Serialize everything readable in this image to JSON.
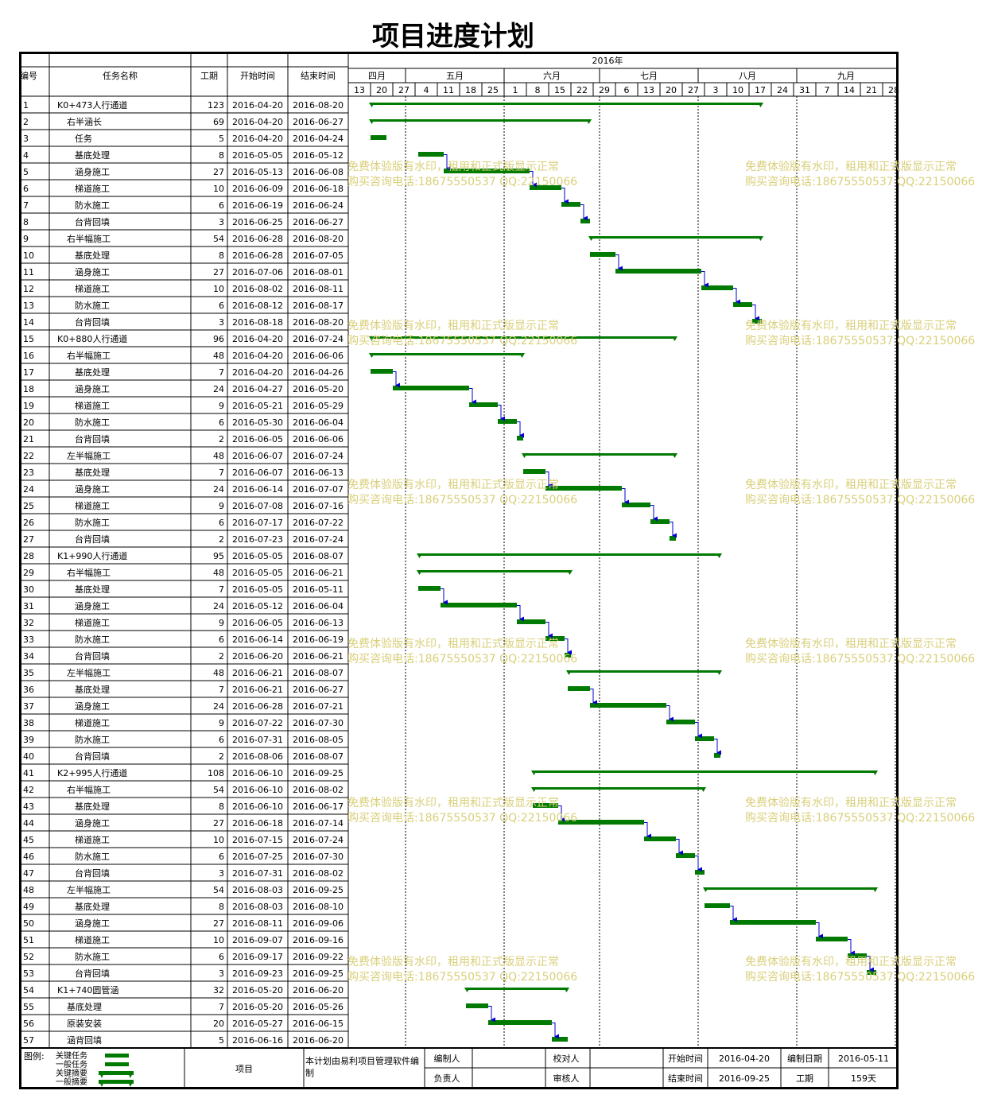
{
  "title": "项目进度计划",
  "columns": [
    "编号",
    "任务名称",
    "工期",
    "开始时间",
    "结束时间"
  ],
  "timeline": {
    "year": "2016年",
    "months": [
      "四月",
      "五月",
      "六月",
      "七月",
      "八月",
      "九月"
    ],
    "weeks": [
      "13",
      "20",
      "27",
      "4",
      "11",
      "18",
      "25",
      "1",
      "8",
      "15",
      "22",
      "29",
      "6",
      "13",
      "20",
      "27",
      "3",
      "10",
      "17",
      "24",
      "31",
      "7",
      "14",
      "21",
      "28"
    ]
  },
  "tasks": [
    {
      "id": "1",
      "name": "K0+473人行通道",
      "level": 0,
      "dur": "123",
      "start": "2016-04-20",
      "end": "2016-08-20"
    },
    {
      "id": "2",
      "name": "右半涵长",
      "level": 1,
      "dur": "69",
      "start": "2016-04-20",
      "end": "2016-06-27"
    },
    {
      "id": "3",
      "name": "任务",
      "level": 2,
      "dur": "5",
      "start": "2016-04-20",
      "end": "2016-04-24"
    },
    {
      "id": "4",
      "name": "基底处理",
      "level": 2,
      "dur": "8",
      "start": "2016-05-05",
      "end": "2016-05-12"
    },
    {
      "id": "5",
      "name": "涵身施工",
      "level": 2,
      "dur": "27",
      "start": "2016-05-13",
      "end": "2016-06-08"
    },
    {
      "id": "6",
      "name": "梯道施工",
      "level": 2,
      "dur": "10",
      "start": "2016-06-09",
      "end": "2016-06-18"
    },
    {
      "id": "7",
      "name": "防水施工",
      "level": 2,
      "dur": "6",
      "start": "2016-06-19",
      "end": "2016-06-24"
    },
    {
      "id": "8",
      "name": "台背回填",
      "level": 2,
      "dur": "3",
      "start": "2016-06-25",
      "end": "2016-06-27"
    },
    {
      "id": "9",
      "name": "右半幅施工",
      "level": 1,
      "dur": "54",
      "start": "2016-06-28",
      "end": "2016-08-20"
    },
    {
      "id": "10",
      "name": "基底处理",
      "level": 2,
      "dur": "8",
      "start": "2016-06-28",
      "end": "2016-07-05"
    },
    {
      "id": "11",
      "name": "涵身施工",
      "level": 2,
      "dur": "27",
      "start": "2016-07-06",
      "end": "2016-08-01"
    },
    {
      "id": "12",
      "name": "梯道施工",
      "level": 2,
      "dur": "10",
      "start": "2016-08-02",
      "end": "2016-08-11"
    },
    {
      "id": "13",
      "name": "防水施工",
      "level": 2,
      "dur": "6",
      "start": "2016-08-12",
      "end": "2016-08-17"
    },
    {
      "id": "14",
      "name": "台背回填",
      "level": 2,
      "dur": "3",
      "start": "2016-08-18",
      "end": "2016-08-20"
    },
    {
      "id": "15",
      "name": "K0+880人行通道",
      "level": 0,
      "dur": "96",
      "start": "2016-04-20",
      "end": "2016-07-24"
    },
    {
      "id": "16",
      "name": "右半幅施工",
      "level": 1,
      "dur": "48",
      "start": "2016-04-20",
      "end": "2016-06-06"
    },
    {
      "id": "17",
      "name": "基底处理",
      "level": 2,
      "dur": "7",
      "start": "2016-04-20",
      "end": "2016-04-26"
    },
    {
      "id": "18",
      "name": "涵身施工",
      "level": 2,
      "dur": "24",
      "start": "2016-04-27",
      "end": "2016-05-20"
    },
    {
      "id": "19",
      "name": "梯道施工",
      "level": 2,
      "dur": "9",
      "start": "2016-05-21",
      "end": "2016-05-29"
    },
    {
      "id": "20",
      "name": "防水施工",
      "level": 2,
      "dur": "6",
      "start": "2016-05-30",
      "end": "2016-06-04"
    },
    {
      "id": "21",
      "name": "台背回填",
      "level": 2,
      "dur": "2",
      "start": "2016-06-05",
      "end": "2016-06-06"
    },
    {
      "id": "22",
      "name": "左半幅施工",
      "level": 1,
      "dur": "48",
      "start": "2016-06-07",
      "end": "2016-07-24"
    },
    {
      "id": "23",
      "name": "基底处理",
      "level": 2,
      "dur": "7",
      "start": "2016-06-07",
      "end": "2016-06-13"
    },
    {
      "id": "24",
      "name": "涵身施工",
      "level": 2,
      "dur": "24",
      "start": "2016-06-14",
      "end": "2016-07-07"
    },
    {
      "id": "25",
      "name": "梯道施工",
      "level": 2,
      "dur": "9",
      "start": "2016-07-08",
      "end": "2016-07-16"
    },
    {
      "id": "26",
      "name": "防水施工",
      "level": 2,
      "dur": "6",
      "start": "2016-07-17",
      "end": "2016-07-22"
    },
    {
      "id": "27",
      "name": "台背回填",
      "level": 2,
      "dur": "2",
      "start": "2016-07-23",
      "end": "2016-07-24"
    },
    {
      "id": "28",
      "name": "K1+990人行通道",
      "level": 0,
      "dur": "95",
      "start": "2016-05-05",
      "end": "2016-08-07"
    },
    {
      "id": "29",
      "name": "右半幅施工",
      "level": 1,
      "dur": "48",
      "start": "2016-05-05",
      "end": "2016-06-21"
    },
    {
      "id": "30",
      "name": "基底处理",
      "level": 2,
      "dur": "7",
      "start": "2016-05-05",
      "end": "2016-05-11"
    },
    {
      "id": "31",
      "name": "涵身施工",
      "level": 2,
      "dur": "24",
      "start": "2016-05-12",
      "end": "2016-06-04"
    },
    {
      "id": "32",
      "name": "梯道施工",
      "level": 2,
      "dur": "9",
      "start": "2016-06-05",
      "end": "2016-06-13"
    },
    {
      "id": "33",
      "name": "防水施工",
      "level": 2,
      "dur": "6",
      "start": "2016-06-14",
      "end": "2016-06-19"
    },
    {
      "id": "34",
      "name": "台背回填",
      "level": 2,
      "dur": "2",
      "start": "2016-06-20",
      "end": "2016-06-21"
    },
    {
      "id": "35",
      "name": "左半幅施工",
      "level": 1,
      "dur": "48",
      "start": "2016-06-21",
      "end": "2016-08-07"
    },
    {
      "id": "36",
      "name": "基底处理",
      "level": 2,
      "dur": "7",
      "start": "2016-06-21",
      "end": "2016-06-27"
    },
    {
      "id": "37",
      "name": "涵身施工",
      "level": 2,
      "dur": "24",
      "start": "2016-06-28",
      "end": "2016-07-21"
    },
    {
      "id": "38",
      "name": "梯道施工",
      "level": 2,
      "dur": "9",
      "start": "2016-07-22",
      "end": "2016-07-30"
    },
    {
      "id": "39",
      "name": "防水施工",
      "level": 2,
      "dur": "6",
      "start": "2016-07-31",
      "end": "2016-08-05"
    },
    {
      "id": "40",
      "name": "台背回填",
      "level": 2,
      "dur": "2",
      "start": "2016-08-06",
      "end": "2016-08-07"
    },
    {
      "id": "41",
      "name": "K2+995人行通道",
      "level": 0,
      "dur": "108",
      "start": "2016-06-10",
      "end": "2016-09-25"
    },
    {
      "id": "42",
      "name": "右半幅施工",
      "level": 1,
      "dur": "54",
      "start": "2016-06-10",
      "end": "2016-08-02"
    },
    {
      "id": "43",
      "name": "基底处理",
      "level": 2,
      "dur": "8",
      "start": "2016-06-10",
      "end": "2016-06-17"
    },
    {
      "id": "44",
      "name": "涵身施工",
      "level": 2,
      "dur": "27",
      "start": "2016-06-18",
      "end": "2016-07-14"
    },
    {
      "id": "45",
      "name": "梯道施工",
      "level": 2,
      "dur": "10",
      "start": "2016-07-15",
      "end": "2016-07-24"
    },
    {
      "id": "46",
      "name": "防水施工",
      "level": 2,
      "dur": "6",
      "start": "2016-07-25",
      "end": "2016-07-30"
    },
    {
      "id": "47",
      "name": "台背回填",
      "level": 2,
      "dur": "3",
      "start": "2016-07-31",
      "end": "2016-08-02"
    },
    {
      "id": "48",
      "name": "左半幅施工",
      "level": 1,
      "dur": "54",
      "start": "2016-08-03",
      "end": "2016-09-25"
    },
    {
      "id": "49",
      "name": "基底处理",
      "level": 2,
      "dur": "8",
      "start": "2016-08-03",
      "end": "2016-08-10"
    },
    {
      "id": "50",
      "name": "涵身施工",
      "level": 2,
      "dur": "27",
      "start": "2016-08-11",
      "end": "2016-09-06"
    },
    {
      "id": "51",
      "name": "梯道施工",
      "level": 2,
      "dur": "10",
      "start": "2016-09-07",
      "end": "2016-09-16"
    },
    {
      "id": "52",
      "name": "防水施工",
      "level": 2,
      "dur": "6",
      "start": "2016-09-17",
      "end": "2016-09-22"
    },
    {
      "id": "53",
      "name": "台背回填",
      "level": 2,
      "dur": "3",
      "start": "2016-09-23",
      "end": "2016-09-25"
    },
    {
      "id": "54",
      "name": "K1+740圆管涵",
      "level": 0,
      "dur": "32",
      "start": "2016-05-20",
      "end": "2016-06-20"
    },
    {
      "id": "55",
      "name": "基底处理",
      "level": 1,
      "dur": "7",
      "start": "2016-05-20",
      "end": "2016-05-26"
    },
    {
      "id": "56",
      "name": "原装安装",
      "level": 1,
      "dur": "20",
      "start": "2016-05-27",
      "end": "2016-06-15"
    },
    {
      "id": "57",
      "name": "涵背回填",
      "level": 1,
      "dur": "5",
      "start": "2016-06-16",
      "end": "2016-06-20"
    }
  ],
  "footer": {
    "legend_label": "图例:",
    "legend_items": [
      "关键任务",
      "一般任务",
      "关键摘要",
      "一般摘要"
    ],
    "project_label": "项目",
    "software_note": "本计划由易利项目管理软件编制",
    "editor_label": "编制人",
    "editor_value": "",
    "checker_label": "校对人",
    "checker_value": "",
    "start_label": "开始时间",
    "start_value": "2016-04-20",
    "date_label": "编制日期",
    "date_value": "2016-05-11",
    "owner_label": "负责人",
    "owner_value": "",
    "reviewer_label": "审核人",
    "reviewer_value": "",
    "end_label": "结束时间",
    "end_value": "2016-09-25",
    "duration_label": "工期",
    "duration_value": "159天"
  },
  "watermark": {
    "line1": "免费体验版有水印，租用和正式版显示正常",
    "line2": "购买咨询电话:18675550537 QQ:22150066"
  },
  "colors": {
    "bar": "#007a00",
    "link": "#0000cc",
    "grid": "#000000",
    "watermark": "#d9cf7a"
  }
}
